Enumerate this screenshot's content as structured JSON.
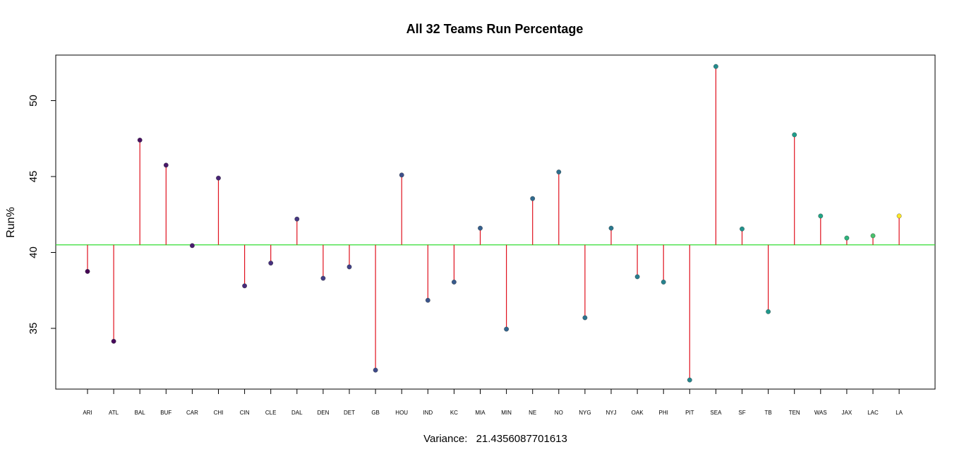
{
  "chart_data": {
    "type": "scatter",
    "title": "All 32 Teams Run Percentage",
    "ylabel": "Run%",
    "xlabel_prefix": "Variance:",
    "xlabel_value": "21.4356087701613",
    "reference_line": 40.5,
    "ylim": [
      31.0,
      53.0
    ],
    "yticks": [
      "35",
      "40",
      "45",
      "50"
    ],
    "grid": false,
    "legend": "none",
    "categories": [
      "ARI",
      "ATL",
      "BAL",
      "BUF",
      "CAR",
      "CHI",
      "CIN",
      "CLE",
      "DAL",
      "DEN",
      "DET",
      "GB",
      "HOU",
      "IND",
      "KC",
      "MIA",
      "MIN",
      "NE",
      "NO",
      "NYG",
      "NYJ",
      "OAK",
      "PHI",
      "PIT",
      "SEA",
      "SF",
      "TB",
      "TEN",
      "WAS",
      "JAX",
      "LAC",
      "LA"
    ],
    "values": [
      38.75,
      34.15,
      47.4,
      45.75,
      40.45,
      44.9,
      37.8,
      39.3,
      42.2,
      38.3,
      39.05,
      32.25,
      45.1,
      36.85,
      38.05,
      41.6,
      34.95,
      43.55,
      45.3,
      35.7,
      41.6,
      38.4,
      38.05,
      31.6,
      52.25,
      41.55,
      36.1,
      47.75,
      42.4,
      40.95,
      41.1,
      42.4
    ],
    "point_colors": [
      "#440154",
      "#46085c",
      "#471063",
      "#481769",
      "#481d6f",
      "#482475",
      "#472a7a",
      "#46307e",
      "#453781",
      "#433d84",
      "#414287",
      "#3e4989",
      "#3c4f8a",
      "#3a548c",
      "#375a8c",
      "#355f8d",
      "#32658e",
      "#306a8e",
      "#2e6f8e",
      "#2c728e",
      "#2a788e",
      "#287d8e",
      "#26828e",
      "#24878e",
      "#228c8d",
      "#20928c",
      "#1f978b",
      "#1f9d8a",
      "#21a585",
      "#2eb37c",
      "#4ac16d",
      "#fde725"
    ],
    "stem_color": "#e0101d",
    "reference_color": "#33dd33"
  }
}
